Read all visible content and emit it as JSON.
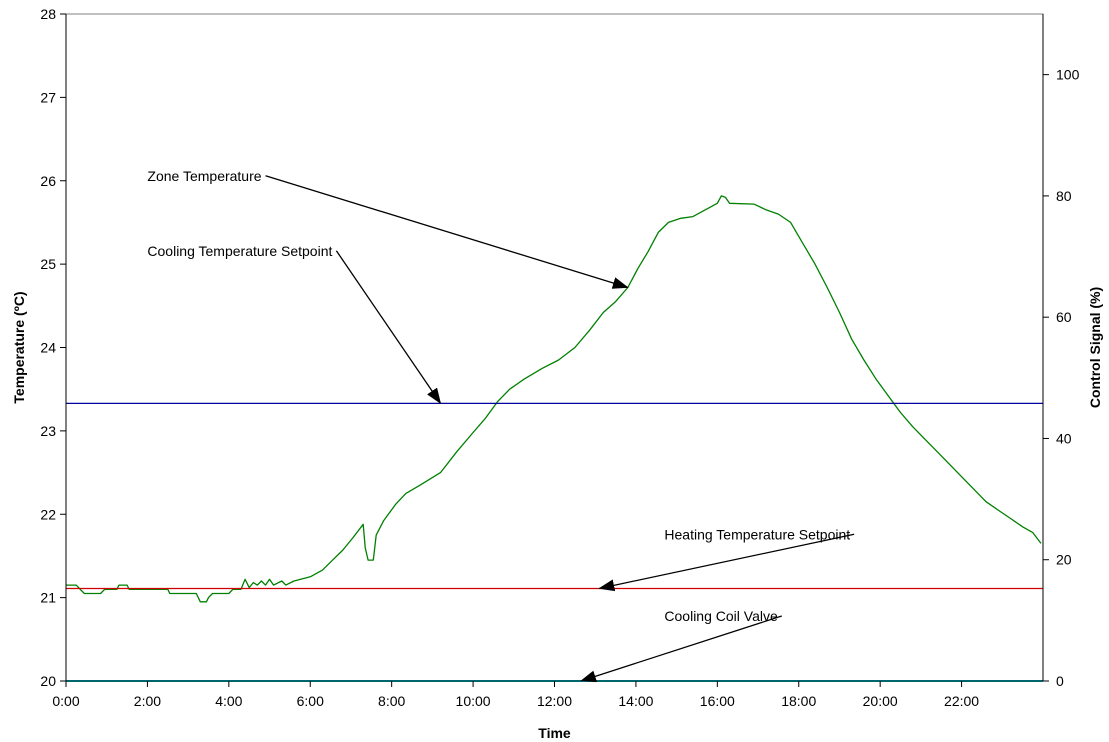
{
  "chart_data": {
    "type": "line",
    "xlabel": "Time",
    "ylabel": "Temperature (ºC)",
    "y2label": "Control Signal (%)",
    "xlim": [
      0,
      24
    ],
    "ylim": [
      20,
      28
    ],
    "y2lim": [
      0,
      110
    ],
    "x_ticks": [
      0,
      2,
      4,
      6,
      8,
      10,
      12,
      14,
      16,
      18,
      20,
      22
    ],
    "x_tick_labels": [
      "0:00",
      "2:00",
      "4:00",
      "6:00",
      "8:00",
      "10:00",
      "12:00",
      "14:00",
      "16:00",
      "18:00",
      "20:00",
      "22:00"
    ],
    "y_ticks": [
      20,
      21,
      22,
      23,
      24,
      25,
      26,
      27,
      28
    ],
    "y_tick_labels": [
      "20",
      "21",
      "22",
      "23",
      "24",
      "25",
      "26",
      "27",
      "28"
    ],
    "y2_ticks": [
      0,
      20,
      40,
      60,
      80,
      100
    ],
    "y2_tick_labels": [
      "0",
      "20",
      "40",
      "60",
      "80",
      "100"
    ],
    "grid": false,
    "series": [
      {
        "name": "Zone Temperature",
        "axis": "left",
        "color": "#008000",
        "points": [
          [
            0,
            21.15
          ],
          [
            0.25,
            21.15
          ],
          [
            0.35,
            21.1
          ],
          [
            0.45,
            21.05
          ],
          [
            0.85,
            21.05
          ],
          [
            0.95,
            21.1
          ],
          [
            1.25,
            21.1
          ],
          [
            1.3,
            21.15
          ],
          [
            1.5,
            21.15
          ],
          [
            1.55,
            21.1
          ],
          [
            2.5,
            21.1
          ],
          [
            2.55,
            21.05
          ],
          [
            3.2,
            21.05
          ],
          [
            3.3,
            20.95
          ],
          [
            3.45,
            20.95
          ],
          [
            3.5,
            21.0
          ],
          [
            3.6,
            21.05
          ],
          [
            4.0,
            21.05
          ],
          [
            4.1,
            21.1
          ],
          [
            4.3,
            21.1
          ],
          [
            4.4,
            21.22
          ],
          [
            4.5,
            21.12
          ],
          [
            4.6,
            21.18
          ],
          [
            4.7,
            21.15
          ],
          [
            4.8,
            21.2
          ],
          [
            4.9,
            21.15
          ],
          [
            5.0,
            21.22
          ],
          [
            5.1,
            21.15
          ],
          [
            5.3,
            21.2
          ],
          [
            5.4,
            21.15
          ],
          [
            5.6,
            21.2
          ],
          [
            6.0,
            21.25
          ],
          [
            6.3,
            21.33
          ],
          [
            6.55,
            21.45
          ],
          [
            6.8,
            21.57
          ],
          [
            7.05,
            21.72
          ],
          [
            7.3,
            21.88
          ],
          [
            7.35,
            21.6
          ],
          [
            7.42,
            21.45
          ],
          [
            7.55,
            21.45
          ],
          [
            7.62,
            21.75
          ],
          [
            7.8,
            21.92
          ],
          [
            8.1,
            22.12
          ],
          [
            8.35,
            22.25
          ],
          [
            8.7,
            22.35
          ],
          [
            9.2,
            22.5
          ],
          [
            9.6,
            22.75
          ],
          [
            10.0,
            22.98
          ],
          [
            10.3,
            23.15
          ],
          [
            10.6,
            23.35
          ],
          [
            10.9,
            23.5
          ],
          [
            11.25,
            23.62
          ],
          [
            11.7,
            23.75
          ],
          [
            12.1,
            23.85
          ],
          [
            12.5,
            24.0
          ],
          [
            12.85,
            24.2
          ],
          [
            13.2,
            24.42
          ],
          [
            13.5,
            24.55
          ],
          [
            13.8,
            24.72
          ],
          [
            14.05,
            24.95
          ],
          [
            14.3,
            25.15
          ],
          [
            14.55,
            25.38
          ],
          [
            14.8,
            25.5
          ],
          [
            15.1,
            25.55
          ],
          [
            15.4,
            25.57
          ],
          [
            15.7,
            25.65
          ],
          [
            16.0,
            25.73
          ],
          [
            16.1,
            25.82
          ],
          [
            16.2,
            25.8
          ],
          [
            16.3,
            25.73
          ],
          [
            16.9,
            25.72
          ],
          [
            17.2,
            25.65
          ],
          [
            17.5,
            25.6
          ],
          [
            17.8,
            25.5
          ],
          [
            18.1,
            25.25
          ],
          [
            18.4,
            25.0
          ],
          [
            18.7,
            24.72
          ],
          [
            19.0,
            24.42
          ],
          [
            19.3,
            24.1
          ],
          [
            19.6,
            23.85
          ],
          [
            19.9,
            23.62
          ],
          [
            20.2,
            23.42
          ],
          [
            20.5,
            23.22
          ],
          [
            20.8,
            23.05
          ],
          [
            21.1,
            22.9
          ],
          [
            21.4,
            22.75
          ],
          [
            21.7,
            22.6
          ],
          [
            22.0,
            22.45
          ],
          [
            22.3,
            22.3
          ],
          [
            22.6,
            22.15
          ],
          [
            22.9,
            22.05
          ],
          [
            23.2,
            21.95
          ],
          [
            23.5,
            21.85
          ],
          [
            23.75,
            21.78
          ],
          [
            23.95,
            21.65
          ]
        ]
      },
      {
        "name": "Cooling Temperature Setpoint",
        "axis": "left",
        "color": "#0000A0",
        "points": [
          [
            0,
            23.33
          ],
          [
            24,
            23.33
          ]
        ]
      },
      {
        "name": "Heating Temperature Setpoint",
        "axis": "left",
        "color": "#D00000",
        "points": [
          [
            0,
            21.11
          ],
          [
            24,
            21.11
          ]
        ]
      },
      {
        "name": "Cooling Coil Valve",
        "axis": "right",
        "color": "#00CCDD",
        "points": [
          [
            0,
            0
          ],
          [
            24,
            0
          ]
        ]
      }
    ],
    "annotations": [
      {
        "text": "Zone Temperature",
        "x": 2.0,
        "y": 26.0,
        "arrow_to": [
          13.8,
          24.72
        ],
        "anchor": "start"
      },
      {
        "text": "Cooling Temperature Setpoint",
        "x": 2.0,
        "y": 25.1,
        "arrow_to": [
          9.2,
          23.33
        ],
        "anchor": "start"
      },
      {
        "text": "Heating Temperature Setpoint",
        "x": 14.7,
        "y": 21.7,
        "arrow_to": [
          13.1,
          21.11
        ],
        "anchor": "start"
      },
      {
        "text": "Cooling Coil Valve",
        "x": 14.7,
        "y": 20.72,
        "arrow_to": [
          12.65,
          20.0
        ],
        "anchor": "start"
      }
    ]
  }
}
